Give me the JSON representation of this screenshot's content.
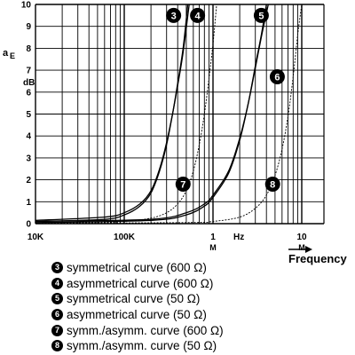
{
  "chart_data": {
    "type": "line",
    "ylabel_main": "a",
    "ylabel_sub": "E",
    "yunit": "dB",
    "xunit": "Hz",
    "xlabel": "Frequency",
    "xscale": "log",
    "xlim": [
      10000,
      20000000
    ],
    "ylim": [
      0,
      10
    ],
    "x_ticks": [
      {
        "value": 10000,
        "label": "10K",
        "sub": ""
      },
      {
        "value": 100000,
        "label": "100K",
        "sub": ""
      },
      {
        "value": 1000000,
        "label": "1",
        "sub": "M"
      },
      {
        "value": 10000000,
        "label": "10",
        "sub": "M"
      }
    ],
    "y_ticks": [
      0,
      1,
      2,
      3,
      4,
      5,
      6,
      7,
      8,
      9,
      10
    ],
    "grid": true,
    "series": [
      {
        "name": "3",
        "label": "symmetrical curve (600 Ω)",
        "points": [
          [
            10000,
            0.1
          ],
          [
            60000,
            0.2
          ],
          [
            100000,
            0.4
          ],
          [
            150000,
            0.8
          ],
          [
            200000,
            1.4
          ],
          [
            250000,
            2.4
          ],
          [
            300000,
            3.6
          ],
          [
            350000,
            5.0
          ],
          [
            400000,
            6.4
          ],
          [
            460000,
            8.0
          ],
          [
            520000,
            10.0
          ]
        ]
      },
      {
        "name": "4",
        "label": "asymmetrical curve (600 Ω)",
        "points": [
          [
            10000,
            0.15
          ],
          [
            60000,
            0.3
          ],
          [
            100000,
            0.5
          ],
          [
            150000,
            0.9
          ],
          [
            200000,
            1.5
          ],
          [
            250000,
            2.5
          ],
          [
            300000,
            3.7
          ],
          [
            350000,
            5.0
          ],
          [
            400000,
            6.3
          ],
          [
            460000,
            7.8
          ],
          [
            540000,
            10.0
          ]
        ]
      },
      {
        "name": "5",
        "label": "symmetrical curve (50 Ω)",
        "points": [
          [
            10000,
            0.05
          ],
          [
            200000,
            0.15
          ],
          [
            500000,
            0.4
          ],
          [
            800000,
            0.8
          ],
          [
            1000000,
            1.2
          ],
          [
            1500000,
            2.3
          ],
          [
            2000000,
            3.8
          ],
          [
            2500000,
            5.5
          ],
          [
            3000000,
            7.2
          ],
          [
            3500000,
            8.6
          ],
          [
            4000000,
            10.0
          ]
        ]
      },
      {
        "name": "6",
        "label": "asymmetrical curve (50 Ω)",
        "points": [
          [
            10000,
            0.1
          ],
          [
            200000,
            0.2
          ],
          [
            500000,
            0.5
          ],
          [
            800000,
            0.9
          ],
          [
            1000000,
            1.3
          ],
          [
            1500000,
            2.4
          ],
          [
            2000000,
            3.9
          ],
          [
            2500000,
            5.5
          ],
          [
            3000000,
            7.1
          ],
          [
            3500000,
            8.5
          ],
          [
            4200000,
            10.0
          ]
        ]
      },
      {
        "name": "7",
        "label": "symm./asymm. curve (600 Ω)",
        "points": [
          [
            10000,
            0.03
          ],
          [
            50000,
            0.05
          ],
          [
            100000,
            0.1
          ],
          [
            200000,
            0.25
          ],
          [
            300000,
            0.5
          ],
          [
            400000,
            0.9
          ],
          [
            500000,
            1.5
          ],
          [
            600000,
            2.4
          ],
          [
            700000,
            3.6
          ],
          [
            800000,
            5.0
          ],
          [
            900000,
            6.6
          ],
          [
            1000000,
            8.2
          ],
          [
            1100000,
            10.0
          ]
        ]
      },
      {
        "name": "8",
        "label": "symm./asymm. curve (50 Ω)",
        "points": [
          [
            10000,
            0.02
          ],
          [
            500000,
            0.05
          ],
          [
            1000000,
            0.1
          ],
          [
            2000000,
            0.3
          ],
          [
            3000000,
            0.7
          ],
          [
            4000000,
            1.3
          ],
          [
            5000000,
            2.2
          ],
          [
            6000000,
            3.4
          ],
          [
            7000000,
            4.9
          ],
          [
            8000000,
            6.7
          ],
          [
            9000000,
            8.6
          ],
          [
            10000000,
            10.0
          ]
        ]
      }
    ],
    "markers": [
      {
        "num": "3",
        "x": 360000,
        "y": 9.5
      },
      {
        "num": "4",
        "x": 670000,
        "y": 9.5
      },
      {
        "num": "5",
        "x": 3500000,
        "y": 9.5
      },
      {
        "num": "6",
        "x": 5300000,
        "y": 6.7
      },
      {
        "num": "7",
        "x": 460000,
        "y": 1.8
      },
      {
        "num": "8",
        "x": 4700000,
        "y": 1.8
      }
    ]
  }
}
